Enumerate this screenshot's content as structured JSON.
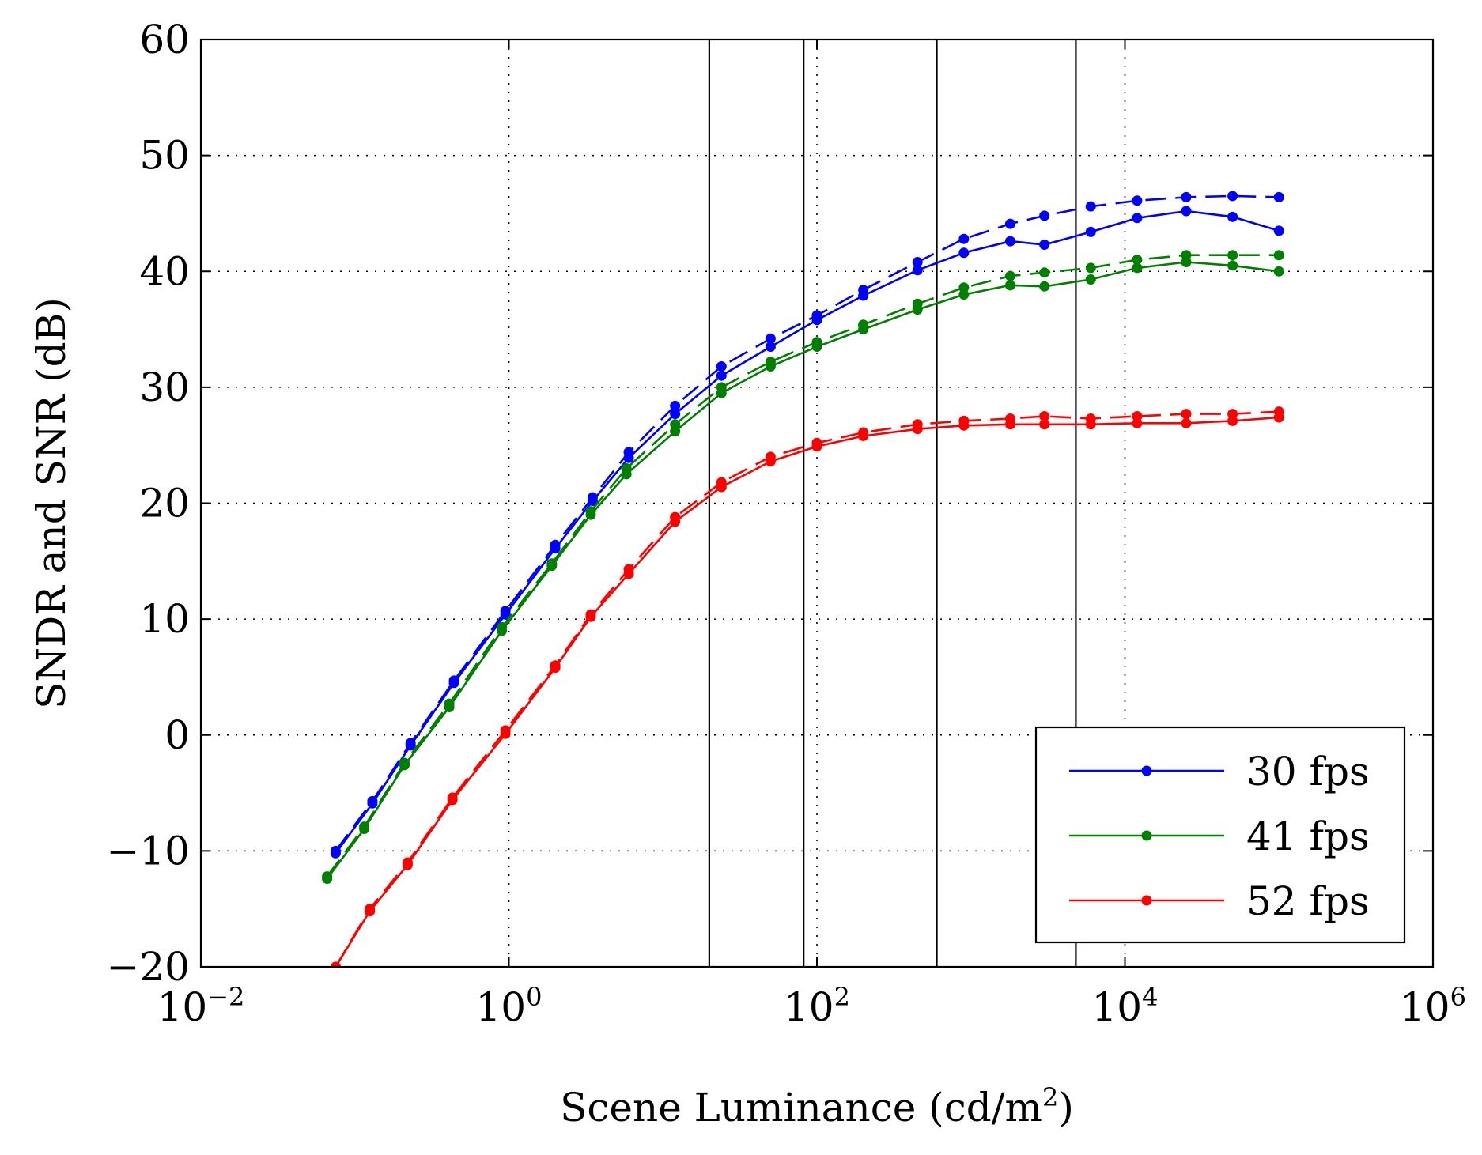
{
  "chart_data": {
    "type": "line",
    "xlabel": "Scene Luminance (cd/m²)",
    "xlabel_main": "Scene Luminance (cd/m",
    "xlabel_sup": "2",
    "xlabel_end": ")",
    "ylabel": "SNDR and SNR (dB)",
    "x_scale": "log",
    "xlim": [
      0.01,
      1000000
    ],
    "ylim": [
      -20,
      60
    ],
    "grid": true,
    "legend_position": "bottom-right",
    "x_ticks": [
      {
        "value": 0.01,
        "base": "10",
        "exp": "−2"
      },
      {
        "value": 1,
        "base": "10",
        "exp": "0"
      },
      {
        "value": 100,
        "base": "10",
        "exp": "2"
      },
      {
        "value": 10000,
        "base": "10",
        "exp": "4"
      },
      {
        "value": 1000000,
        "base": "10",
        "exp": "6"
      }
    ],
    "y_ticks": [
      {
        "value": 60,
        "label": "60"
      },
      {
        "value": 50,
        "label": "50"
      },
      {
        "value": 40,
        "label": "40"
      },
      {
        "value": 30,
        "label": "30"
      },
      {
        "value": 20,
        "label": "20"
      },
      {
        "value": 10,
        "label": "10"
      },
      {
        "value": 0,
        "label": "0"
      },
      {
        "value": -10,
        "label": "−10"
      },
      {
        "value": -20,
        "label": "−20"
      }
    ],
    "vertical_lines": [
      20,
      82,
      600,
      4800
    ],
    "series": [
      {
        "name": "30 fps",
        "color": "#0000ff",
        "sndr": {
          "x": [
            0.075,
            0.13,
            0.23,
            0.44,
            0.95,
            2.0,
            3.5,
            6.0,
            12,
            24,
            50,
            100,
            200,
            450,
            900,
            1800,
            3000,
            6000,
            12000,
            25000,
            50000,
            100000
          ],
          "y": [
            -10.2,
            -5.9,
            -0.9,
            4.5,
            10.4,
            16.1,
            20.2,
            23.9,
            27.7,
            31.0,
            33.5,
            35.8,
            37.9,
            40.1,
            41.6,
            42.6,
            42.3,
            43.4,
            44.6,
            45.2,
            44.7,
            43.5
          ]
        },
        "snr": {
          "x": [
            0.075,
            0.13,
            0.23,
            0.44,
            0.95,
            2.0,
            3.5,
            6.0,
            12,
            24,
            50,
            100,
            200,
            450,
            900,
            1800,
            3000,
            6000,
            12000,
            25000,
            50000,
            100000
          ],
          "y": [
            -10.0,
            -5.7,
            -0.7,
            4.7,
            10.7,
            16.4,
            20.5,
            24.4,
            28.4,
            31.8,
            34.2,
            36.2,
            38.4,
            40.8,
            42.8,
            44.1,
            44.8,
            45.6,
            46.1,
            46.4,
            46.5,
            46.4
          ]
        }
      },
      {
        "name": "41 fps",
        "color": "#008000",
        "sndr": {
          "x": [
            0.066,
            0.115,
            0.21,
            0.41,
            0.9,
            1.9,
            3.4,
            5.8,
            12,
            24,
            50,
            100,
            200,
            450,
            900,
            1800,
            3000,
            6000,
            12000,
            25000,
            50000,
            100000
          ],
          "y": [
            -12.4,
            -8.1,
            -2.6,
            2.4,
            9.0,
            14.6,
            19.0,
            22.5,
            26.2,
            29.5,
            31.8,
            33.5,
            35.0,
            36.7,
            38.0,
            38.8,
            38.7,
            39.3,
            40.3,
            40.8,
            40.5,
            40.0
          ]
        },
        "snr": {
          "x": [
            0.066,
            0.115,
            0.21,
            0.41,
            0.9,
            1.9,
            3.4,
            5.8,
            12,
            24,
            50,
            100,
            200,
            450,
            900,
            1800,
            3000,
            6000,
            12000,
            25000,
            50000,
            100000
          ],
          "y": [
            -12.2,
            -7.9,
            -2.4,
            2.7,
            9.3,
            14.8,
            19.3,
            23.0,
            26.8,
            30.0,
            32.2,
            33.9,
            35.4,
            37.2,
            38.6,
            39.6,
            39.9,
            40.3,
            41.0,
            41.4,
            41.4,
            41.4
          ]
        }
      },
      {
        "name": "52 fps",
        "color": "#ff0000",
        "sndr": {
          "x": [
            0.075,
            0.125,
            0.22,
            0.43,
            0.95,
            2.0,
            3.4,
            6.0,
            12,
            24,
            50,
            100,
            200,
            450,
            900,
            1800,
            3000,
            6000,
            12000,
            25000,
            50000,
            100000
          ],
          "y": [
            -20.0,
            -15.2,
            -11.2,
            -5.6,
            0.1,
            5.8,
            10.2,
            13.9,
            18.4,
            21.4,
            23.6,
            24.9,
            25.8,
            26.4,
            26.7,
            26.8,
            26.8,
            26.8,
            26.9,
            26.9,
            27.1,
            27.4
          ]
        },
        "snr": {
          "x": [
            0.075,
            0.125,
            0.22,
            0.43,
            0.95,
            2.0,
            3.4,
            6.0,
            12,
            24,
            50,
            100,
            200,
            450,
            900,
            1800,
            3000,
            6000,
            12000,
            25000,
            50000,
            100000
          ],
          "y": [
            -20.0,
            -15.0,
            -11.0,
            -5.4,
            0.4,
            6.0,
            10.4,
            14.3,
            18.8,
            21.8,
            24.0,
            25.2,
            26.1,
            26.8,
            27.1,
            27.3,
            27.5,
            27.3,
            27.5,
            27.7,
            27.7,
            27.9
          ]
        }
      }
    ]
  }
}
